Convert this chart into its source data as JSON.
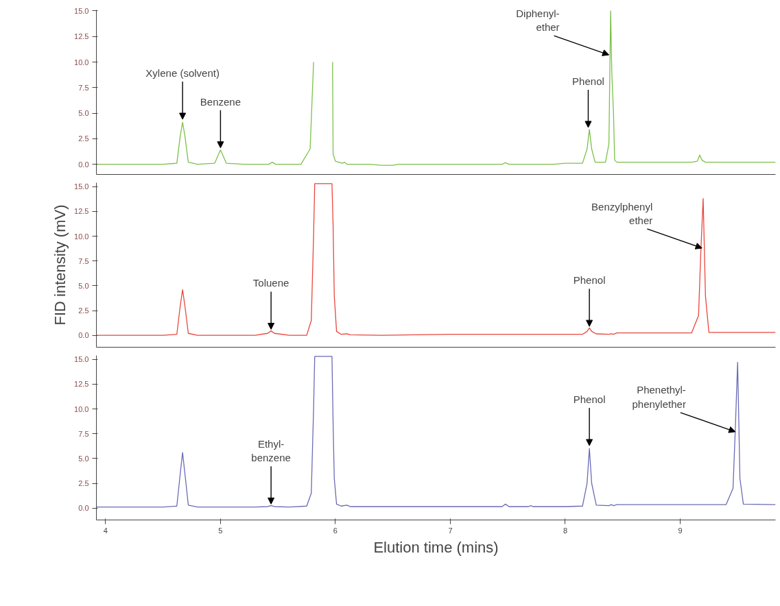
{
  "chart_data": [
    {
      "type": "line",
      "xlim": [
        3.92,
        9.83
      ],
      "ylim": [
        -1,
        15.1
      ],
      "xticks": [
        4,
        5,
        6,
        7,
        8,
        9
      ],
      "yticks": [
        {
          "value": 0,
          "label": "0.0"
        },
        {
          "value": 2.5,
          "label": "2.5"
        },
        {
          "value": 5,
          "label": "5.0"
        },
        {
          "value": 7.5,
          "label": "7.5"
        },
        {
          "value": 10,
          "label": "10.0"
        },
        {
          "value": 12.5,
          "label": "12.5"
        },
        {
          "value": 15,
          "label": "15.0"
        }
      ],
      "tick_labels": "y",
      "grid": false,
      "series": [
        {
          "color": "#7cc04a",
          "x": [
            3.92,
            4.5,
            4.62,
            4.65,
            4.67,
            4.69,
            4.72,
            4.8,
            4.95,
            4.98,
            5.0,
            5.02,
            5.05,
            5.2,
            5.42,
            5.45,
            5.48,
            5.7,
            5.78,
            5.81,
            5.82,
            5.83,
            5.96,
            5.97,
            5.975,
            5.98,
            6.0,
            6.06,
            6.08,
            6.1,
            6.3,
            6.4,
            6.5,
            6.55,
            7.0,
            7.45,
            7.48,
            7.51,
            7.9,
            8.0,
            8.15,
            8.19,
            8.21,
            8.23,
            8.26,
            8.35,
            8.38,
            8.395,
            8.405,
            8.42,
            8.43,
            8.45,
            8.7,
            9.1,
            9.15,
            9.17,
            9.19,
            9.22,
            9.5,
            9.83
          ],
          "values": [
            0.0,
            0.0,
            0.1,
            2.8,
            4.1,
            2.8,
            0.2,
            0.0,
            0.1,
            0.9,
            1.4,
            0.9,
            0.1,
            0.0,
            0.0,
            0.2,
            0.0,
            0.0,
            1.5,
            10.0,
            null,
            null,
            null,
            null,
            10.0,
            1.0,
            0.3,
            0.1,
            0.2,
            0.0,
            0.0,
            -0.1,
            -0.1,
            0.0,
            0.0,
            0.0,
            0.15,
            0.0,
            0.0,
            0.1,
            0.1,
            1.5,
            3.4,
            1.5,
            0.2,
            0.2,
            2.0,
            15.0,
            9.0,
            5.0,
            0.4,
            0.2,
            0.2,
            0.2,
            0.3,
            0.9,
            0.4,
            0.2,
            0.2,
            0.2
          ]
        }
      ],
      "annotations": [
        {
          "text": "Xylene (solvent)",
          "x": 4.67,
          "y": 4.4
        },
        {
          "text": "Benzene",
          "x": 5.0,
          "y": 1.6
        },
        {
          "text": "Diphenyl-\nether",
          "x": 8.38,
          "y": 10.7
        },
        {
          "text": "Phenol",
          "x": 8.2,
          "y": 3.6
        }
      ]
    },
    {
      "type": "line",
      "xlim": [
        3.92,
        9.83
      ],
      "ylim": [
        -1.2,
        15.4
      ],
      "xticks": [
        4,
        5,
        6,
        7,
        8,
        9
      ],
      "yticks": [
        {
          "value": 0,
          "label": "0.0"
        },
        {
          "value": 2.5,
          "label": "2.5"
        },
        {
          "value": 5,
          "label": "5.0"
        },
        {
          "value": 7.5,
          "label": "7.5"
        },
        {
          "value": 10,
          "label": "10.0"
        },
        {
          "value": 12.5,
          "label": "12.5"
        },
        {
          "value": 15,
          "label": "15.0"
        }
      ],
      "tick_labels": "y",
      "grid": false,
      "ylabel": "FID intensity (mV)",
      "series": [
        {
          "color": "#e8463c",
          "x": [
            3.92,
            4.5,
            4.62,
            4.65,
            4.67,
            4.69,
            4.72,
            4.8,
            5.3,
            5.41,
            5.44,
            5.47,
            5.6,
            5.75,
            5.79,
            5.81,
            5.82,
            5.97,
            5.98,
            5.99,
            6.01,
            6.05,
            6.1,
            6.13,
            6.4,
            7.0,
            7.5,
            8.0,
            8.15,
            8.19,
            8.21,
            8.23,
            8.27,
            8.38,
            8.4,
            8.42,
            8.45,
            8.8,
            9.1,
            9.16,
            9.18,
            9.2,
            9.21,
            9.22,
            9.25,
            9.5,
            9.83
          ],
          "values": [
            0.0,
            0.0,
            0.1,
            3.0,
            4.6,
            3.0,
            0.2,
            0.0,
            0.0,
            0.2,
            0.45,
            0.2,
            0.0,
            0.0,
            1.5,
            10.0,
            15.3,
            15.3,
            11.0,
            4.0,
            0.4,
            0.1,
            0.15,
            0.05,
            0.0,
            0.1,
            0.1,
            0.1,
            0.1,
            0.4,
            0.75,
            0.4,
            0.15,
            0.1,
            0.15,
            0.1,
            0.25,
            0.25,
            0.25,
            2.0,
            8.5,
            13.8,
            9.0,
            4.0,
            0.3,
            0.3,
            0.3
          ]
        }
      ],
      "annotations": [
        {
          "text": "Toluene",
          "x": 5.44,
          "y": 0.6
        },
        {
          "text": "Phenol",
          "x": 8.21,
          "y": 0.9
        },
        {
          "text": "Benzylphenyl\nether",
          "x": 9.19,
          "y": 8.8
        }
      ]
    },
    {
      "type": "line",
      "xlim": [
        3.92,
        9.83
      ],
      "ylim": [
        -1.2,
        15.4
      ],
      "xticks": [
        4,
        5,
        6,
        7,
        8,
        9
      ],
      "yticks": [
        {
          "value": 0,
          "label": "0.0"
        },
        {
          "value": 2.5,
          "label": "2.5"
        },
        {
          "value": 5,
          "label": "5.0"
        },
        {
          "value": 7.5,
          "label": "7.5"
        },
        {
          "value": 10,
          "label": "10.0"
        },
        {
          "value": 12.5,
          "label": "12.5"
        },
        {
          "value": 15,
          "label": "15.0"
        }
      ],
      "grid": false,
      "xlabel": "Elution time (mins)",
      "series": [
        {
          "color": "#6a6ab6",
          "x": [
            3.92,
            4.5,
            4.62,
            4.65,
            4.67,
            4.69,
            4.72,
            4.8,
            5.3,
            5.41,
            5.44,
            5.47,
            5.6,
            5.75,
            5.79,
            5.81,
            5.82,
            5.97,
            5.98,
            5.99,
            6.01,
            6.05,
            6.1,
            6.13,
            6.5,
            7.0,
            7.45,
            7.48,
            7.51,
            7.68,
            7.7,
            7.72,
            8.0,
            8.15,
            8.19,
            8.21,
            8.23,
            8.27,
            8.38,
            8.4,
            8.42,
            8.45,
            8.8,
            9.4,
            9.46,
            9.48,
            9.5,
            9.51,
            9.52,
            9.55,
            9.83
          ],
          "values": [
            0.1,
            0.1,
            0.2,
            3.5,
            5.6,
            3.5,
            0.3,
            0.1,
            0.1,
            0.15,
            0.25,
            0.15,
            0.1,
            0.2,
            1.5,
            10.0,
            15.3,
            15.3,
            8.5,
            3.0,
            0.4,
            0.2,
            0.3,
            0.15,
            0.15,
            0.15,
            0.15,
            0.4,
            0.15,
            0.15,
            0.25,
            0.15,
            0.15,
            0.2,
            2.5,
            6.0,
            2.5,
            0.3,
            0.25,
            0.35,
            0.25,
            0.35,
            0.35,
            0.35,
            2.0,
            8.0,
            14.7,
            9.0,
            3.0,
            0.4,
            0.35
          ]
        }
      ],
      "annotations": [
        {
          "text": "Ethyl-\nbenzene",
          "x": 5.44,
          "y": 0.4
        },
        {
          "text": "Phenol",
          "x": 8.21,
          "y": 6.3
        },
        {
          "text": "Phenethyl-\nphenylether",
          "x": 9.48,
          "y": 7.7
        }
      ]
    }
  ]
}
